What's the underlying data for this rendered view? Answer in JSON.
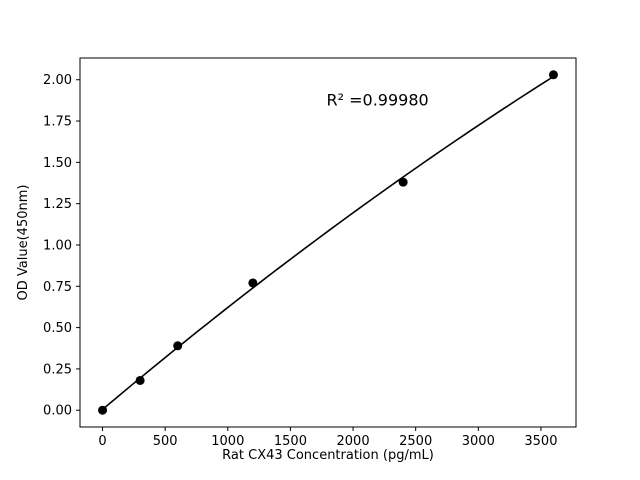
{
  "chart_data": {
    "type": "scatter",
    "title": "",
    "xlabel": "Rat CX43 Concentration (pg/mL)",
    "ylabel": "OD Value(450nm)",
    "x": [
      0,
      300,
      600,
      1200,
      2400,
      3600
    ],
    "y": [
      0.0,
      0.18,
      0.39,
      0.77,
      1.38,
      2.03
    ],
    "fit": "quadratic",
    "annotation": {
      "text": "R² =0.99980",
      "fx": 0.6,
      "fy": 0.885
    },
    "xtick_values": [
      0,
      500,
      1000,
      1500,
      2000,
      2500,
      3000,
      3500
    ],
    "xtick_labels": [
      "0",
      "500",
      "1000",
      "1500",
      "2000",
      "2500",
      "3000",
      "3500"
    ],
    "ytick_values": [
      0.0,
      0.25,
      0.5,
      0.75,
      1.0,
      1.25,
      1.5,
      1.75,
      2.0
    ],
    "ytick_labels": [
      "0.00",
      "0.25",
      "0.50",
      "0.75",
      "1.00",
      "1.25",
      "1.50",
      "1.75",
      "2.00"
    ],
    "xlim": [
      -180,
      3780
    ],
    "ylim": [
      -0.1015,
      2.1315
    ],
    "grid": false,
    "legend": "none",
    "marker_color": "#000000",
    "line_color": "#000000",
    "spine_color": "#000000",
    "background": "#ffffff"
  }
}
